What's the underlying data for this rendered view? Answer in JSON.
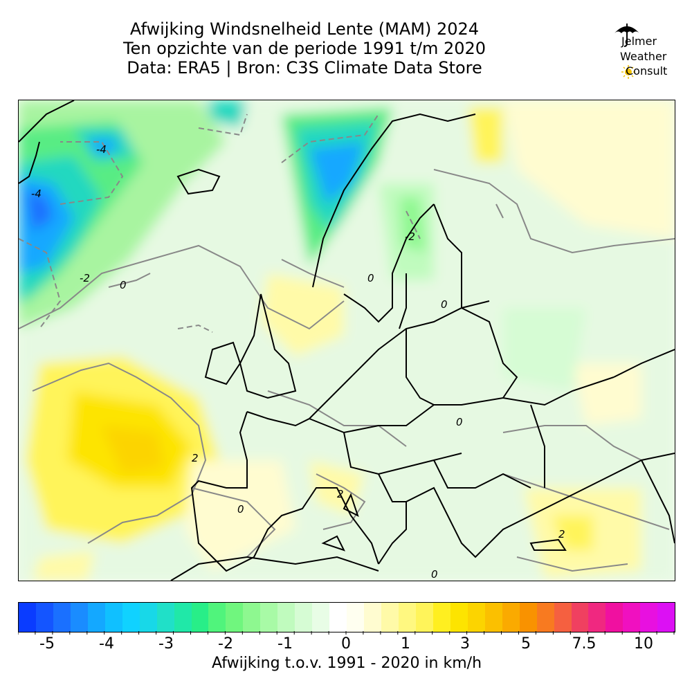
{
  "title": {
    "line1": "Afwijking Windsnelheid Lente (MAM) 2024",
    "line2": "Ten opzichte van de periode 1991 t/m 2020",
    "line3": "Data: ERA5 | Bron: C3S Climate Data Store"
  },
  "logo": {
    "line1": "Jelmer",
    "line2": "Weather",
    "line3": "Consult",
    "icon": "umbrella-sun-logo"
  },
  "map": {
    "region": "Europe",
    "contour_labels": [
      "-4",
      "-4",
      "-2",
      "0",
      "2",
      "-2",
      "0",
      "0",
      "0",
      "2",
      "2",
      "0",
      "0"
    ]
  },
  "colorbar": {
    "colors": [
      "#0a3cff",
      "#1455ff",
      "#1a70ff",
      "#1a8cff",
      "#14a8ff",
      "#10c0ff",
      "#10d2ff",
      "#18d8e8",
      "#20e0c8",
      "#20e8a8",
      "#28ee88",
      "#50f47c",
      "#70f67e",
      "#8ef890",
      "#a8faa6",
      "#c0fbbe",
      "#d6fcd4",
      "#e8fde6",
      "#ffffff",
      "#fffff0",
      "#fffcd0",
      "#fffaa8",
      "#fff880",
      "#fff45a",
      "#ffef20",
      "#fde400",
      "#fcd400",
      "#fbc000",
      "#faaa00",
      "#f99200",
      "#f87a20",
      "#f56040",
      "#f04060",
      "#f02880",
      "#f010a0",
      "#f010c0",
      "#e810e0",
      "#dc10f4"
    ],
    "ticks": [
      "-5",
      "-4",
      "-3",
      "-2",
      "-1",
      "0",
      "1",
      "3",
      "5",
      "7.5",
      "10"
    ],
    "label": "Afwijking t.o.v. 1991 - 2020 in km/h"
  },
  "chart_data": {
    "type": "heatmap",
    "title": "Afwijking Windsnelheid Lente (MAM) 2024",
    "subtitle": "Ten opzichte van de periode 1991 t/m 2020",
    "source": "Data: ERA5 | Bron: C3S Climate Data Store",
    "units": "km/h",
    "color_scale_ticks": [
      -5,
      -4,
      -3,
      -2,
      -1,
      0,
      1,
      3,
      5,
      7.5,
      10
    ],
    "contour_levels": [
      -4,
      -2,
      0,
      2
    ]
  }
}
